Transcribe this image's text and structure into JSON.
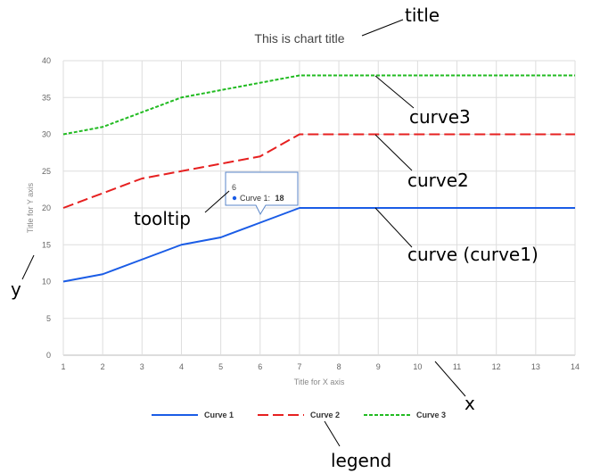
{
  "chart_data": {
    "type": "line",
    "title": "This is chart title",
    "xlabel": "Title for X axis",
    "ylabel": "Title for Y axis",
    "x": [
      1,
      2,
      3,
      4,
      5,
      6,
      7,
      8,
      9,
      10,
      11,
      12,
      13,
      14
    ],
    "xlim": [
      1,
      14
    ],
    "ylim": [
      0,
      40
    ],
    "xticks": [
      "1",
      "2",
      "3",
      "4",
      "5",
      "6",
      "7",
      "8",
      "9",
      "10",
      "11",
      "12",
      "13",
      "14"
    ],
    "yticks": [
      "0",
      "5",
      "10",
      "15",
      "20",
      "25",
      "30",
      "35",
      "40"
    ],
    "grid": true,
    "legend_position": "bottom",
    "series": [
      {
        "name": "Curve 1",
        "color": "#1a5ce6",
        "style": "solid",
        "values": [
          10,
          11,
          13,
          15,
          16,
          18,
          20,
          20,
          20,
          20,
          20,
          20,
          20,
          20
        ]
      },
      {
        "name": "Curve 2",
        "color": "#e62020",
        "style": "long-dash",
        "values": [
          20,
          22,
          24,
          25,
          26,
          27,
          30,
          30,
          30,
          30,
          30,
          30,
          30,
          30
        ]
      },
      {
        "name": "Curve 3",
        "color": "#22bb22",
        "style": "short-dash",
        "values": [
          30,
          31,
          33,
          35,
          36,
          37,
          38,
          38,
          38,
          38,
          38,
          38,
          38,
          38
        ]
      }
    ],
    "tooltip": {
      "x_label": "6",
      "series_label": "Curve 1:",
      "value_label": "18",
      "series_index": 0,
      "point_index": 5
    },
    "annotations": {
      "title": "title",
      "curve3": "curve3",
      "curve2": "curve2",
      "curve1": "curve (curve1)",
      "tooltip": "tooltip",
      "y": "y",
      "x": "x",
      "legend": "legend"
    }
  }
}
